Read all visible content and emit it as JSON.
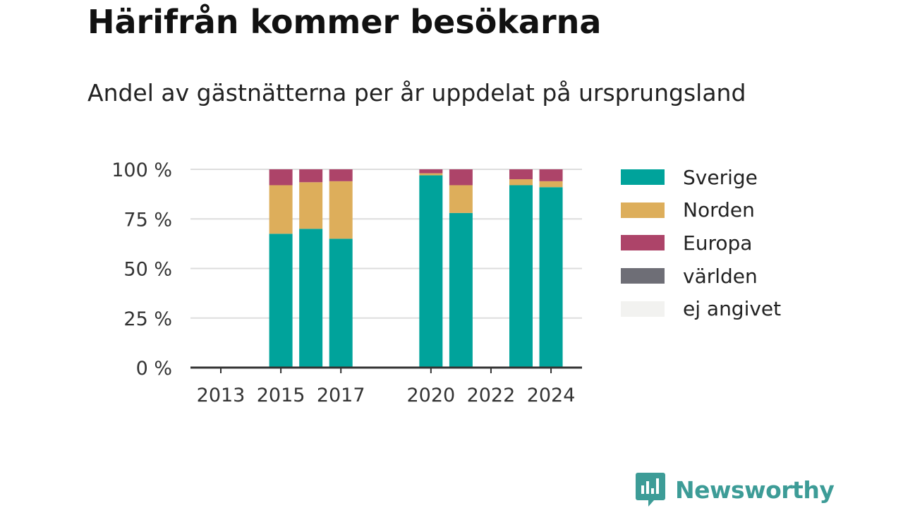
{
  "header": {
    "title": "Härifrån kommer besökarna",
    "subtitle": "Andel av gästnätterna per år uppdelat på ursprungsland"
  },
  "legend": {
    "items": [
      {
        "label": "Sverige",
        "color": "#00a39b"
      },
      {
        "label": "Norden",
        "color": "#ddae5b"
      },
      {
        "label": "Europa",
        "color": "#ad4469"
      },
      {
        "label": "världen",
        "color": "#6e6e76"
      },
      {
        "label": "ej angivet",
        "color": "#f2f2f0"
      }
    ]
  },
  "brand": {
    "name": "Newsworthy",
    "color": "#3d9c97",
    "icon": "bar-chart-speech-bubble-icon"
  },
  "chart_data": {
    "type": "bar",
    "stacked": true,
    "categories": [
      2013,
      2014,
      2015,
      2016,
      2017,
      2018,
      2019,
      2020,
      2021,
      2022,
      2023,
      2024
    ],
    "tick_labels": [
      "2013",
      "2015",
      "2017",
      "2020",
      "2022",
      "2024"
    ],
    "tick_years": [
      2013,
      2015,
      2017,
      2020,
      2022,
      2024
    ],
    "ylim": [
      0,
      100
    ],
    "yticks": [
      0,
      25,
      50,
      75,
      100
    ],
    "ytick_labels": [
      "0 %",
      "25 %",
      "50 %",
      "75 %",
      "100 %"
    ],
    "grid": true,
    "legend_position": "right",
    "series": [
      {
        "name": "Sverige",
        "color": "#00a39b",
        "values": [
          null,
          null,
          67.5,
          70,
          65,
          null,
          null,
          97,
          78,
          null,
          92,
          91
        ]
      },
      {
        "name": "Norden",
        "color": "#ddae5b",
        "values": [
          null,
          null,
          24.5,
          23.5,
          29,
          null,
          null,
          1,
          14,
          null,
          3,
          3
        ]
      },
      {
        "name": "Europa",
        "color": "#ad4469",
        "values": [
          null,
          null,
          8,
          6.5,
          6,
          null,
          null,
          2,
          8,
          null,
          5,
          6
        ]
      },
      {
        "name": "världen",
        "color": "#6e6e76",
        "values": [
          null,
          null,
          0,
          0,
          0,
          null,
          null,
          0,
          0,
          null,
          0,
          0
        ]
      },
      {
        "name": "ej angivet",
        "color": "#f2f2f0",
        "values": [
          null,
          null,
          0,
          0,
          0,
          null,
          null,
          0,
          0,
          null,
          0,
          0
        ]
      }
    ]
  }
}
